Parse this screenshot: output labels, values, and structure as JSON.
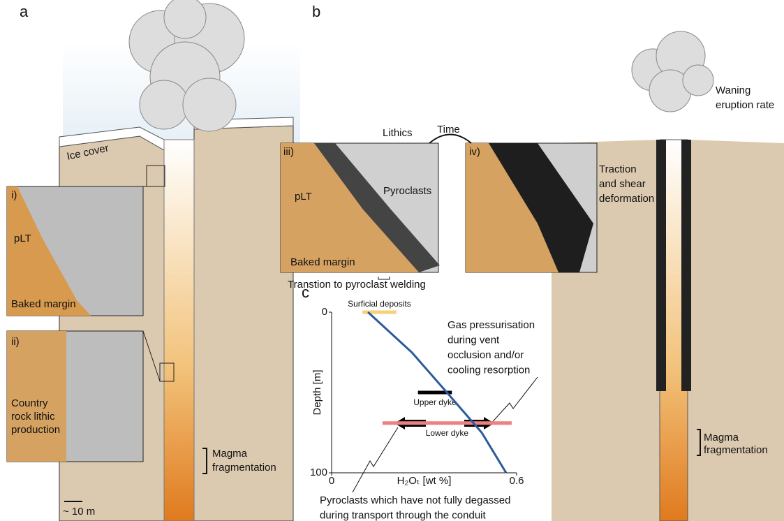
{
  "panels": {
    "a": {
      "label": "a",
      "ice_cover": "Ice cover",
      "inset_i": {
        "label": "i)",
        "plt": "pLT",
        "baked_margin": "Baked margin"
      },
      "inset_ii": {
        "label": "ii)",
        "lines": [
          "Country",
          "rock lithic",
          "production"
        ]
      },
      "fragmentation": [
        "Magma",
        "fragmentation"
      ],
      "scale": "~ 10 m"
    },
    "b": {
      "label": "b",
      "time": "Time",
      "inset_iii": {
        "label": "iii)",
        "lithics": "Lithics",
        "pyroclasts": "Pyroclasts",
        "plt": "pLT",
        "baked_margin": "Baked margin"
      },
      "inset_iv": {
        "label": "iv)",
        "traction": [
          "Traction",
          "and shear",
          "deformation"
        ]
      },
      "welding": "Transtion to pyroclast welding",
      "waning": [
        "Waning",
        "eruption rate"
      ],
      "fragmentation": [
        "Magma",
        "fragmentation"
      ]
    }
  },
  "chart_data": {
    "type": "line",
    "panel_label": "c",
    "x_label": "H₂Oₜ [wt %]",
    "y_label": "Depth [m]",
    "x": [
      0.118,
      0.26,
      0.374,
      0.487,
      0.566
    ],
    "values": [
      0,
      25,
      50,
      75,
      100
    ],
    "color": "#2b5a9c",
    "xlim": [
      0,
      0.6
    ],
    "xticks": [
      0,
      0.6
    ],
    "ylim": [
      100,
      0
    ],
    "yticks": [
      0,
      100
    ],
    "ranges": [
      {
        "label": "Surficial deposits",
        "y": 0,
        "x": [
          0.1,
          0.21
        ],
        "color": "#f3d27a"
      },
      {
        "label": "Upper dyke",
        "y": 50,
        "x": [
          0.28,
          0.39
        ],
        "color": "#000000"
      },
      {
        "label": "Lower dyke",
        "y": 69,
        "x": [
          0.165,
          0.584
        ],
        "color": "#f08080"
      }
    ],
    "annotations": [
      [
        "Gas pressurisation",
        "during vent",
        "occlusion and/or",
        "cooling resorption"
      ],
      [
        "Pyroclasts which have not fully degassed",
        "during transport through the conduit"
      ]
    ]
  }
}
